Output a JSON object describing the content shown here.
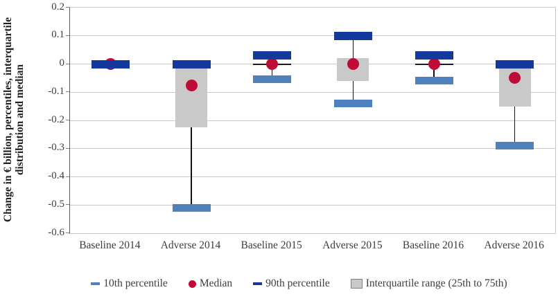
{
  "figure": {
    "y_axis_title_line1": "Change in € billion, percentiles, interquartile",
    "y_axis_title_line2": "distribution and median"
  },
  "chart_data": {
    "type": "scatter",
    "variant": "box-whisker-percentiles (dash markers for 10th/90th percentile, dot for median, box for interquartile range)",
    "title": "",
    "xlabel": "",
    "ylabel": "Change in € billion, percentiles, interquartile distribution and median",
    "ylim": [
      -0.6,
      0.2
    ],
    "yticks": [
      0.2,
      0.1,
      0,
      -0.1,
      -0.2,
      -0.3,
      -0.4,
      -0.5,
      -0.6
    ],
    "ytick_labels": [
      "0.2",
      "0.1",
      "0",
      "-0.1",
      "-0.2",
      "-0.3",
      "-0.4",
      "-0.5",
      "-0.6"
    ],
    "grid": true,
    "legend_position": "bottom",
    "categories": [
      "Baseline 2014",
      "Adverse 2014",
      "Baseline 2015",
      "Adverse 2015",
      "Baseline 2016",
      "Adverse 2016"
    ],
    "series": [
      {
        "name": "10th percentile",
        "marker": "dash",
        "color": "#4E81BD",
        "values": [
          0,
          -0.51,
          -0.055,
          -0.14,
          -0.06,
          -0.29
        ]
      },
      {
        "name": "Median",
        "marker": "dot",
        "color": "#BE0C37",
        "values": [
          0,
          -0.075,
          0,
          0,
          0,
          -0.05
        ]
      },
      {
        "name": "90th percentile",
        "marker": "dash",
        "color": "#14389B",
        "values": [
          0,
          0,
          0.03,
          0.1,
          0.03,
          0
        ]
      },
      {
        "name": "Interquartile range (25th to 75th)",
        "marker": "box",
        "color": "#C9C9C9",
        "p25": [
          0,
          -0.225,
          0,
          -0.06,
          0,
          -0.15
        ],
        "p75": [
          0,
          -0.015,
          0,
          0.02,
          0,
          -0.015
        ]
      }
    ],
    "colors": {
      "p10_dash": "#4E81BD",
      "median_dot": "#BE0C37",
      "p90_dash": "#14389B",
      "iqr_box": "#C9C9C9",
      "iqr_collapsed_line": "#1a1a1a",
      "gridline": "#C8C8C8",
      "axis_line": "#595959",
      "whisker": "#111111",
      "text": "#3D3D3D"
    }
  }
}
